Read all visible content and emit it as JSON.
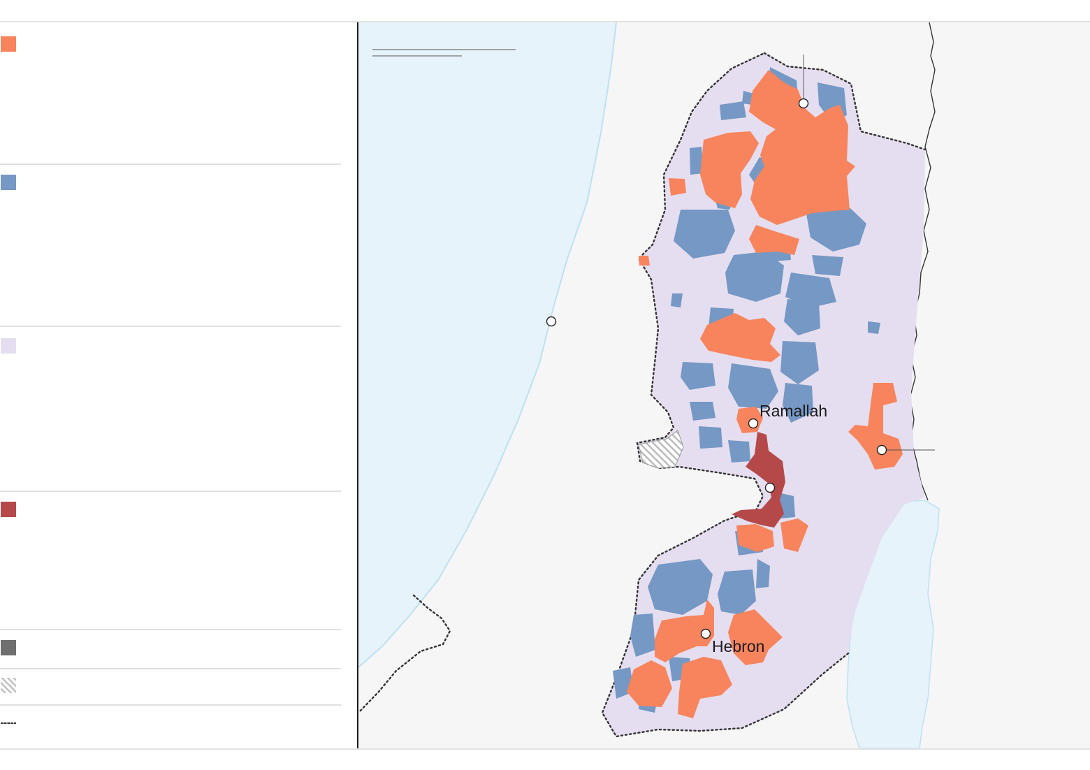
{
  "legend": {
    "items": [
      {
        "label": "",
        "color": "#f7845c",
        "kind": "solid"
      },
      {
        "label": "",
        "color": "#7598c4",
        "kind": "solid"
      },
      {
        "label": "",
        "color": "#e5def0",
        "kind": "solid"
      },
      {
        "label": "",
        "color": "#b5494a",
        "kind": "solid"
      },
      {
        "label": "",
        "color": "#6f6f6f",
        "kind": "solid"
      },
      {
        "label": "",
        "color": "#b9b9b9",
        "kind": "hatch"
      },
      {
        "label": "",
        "color": "#333333",
        "kind": "dotted-line"
      }
    ]
  },
  "map": {
    "colors": {
      "sea": "#e6f3fb",
      "land": "#f6f6f6",
      "territory": "#e5def0",
      "area_a": "#f7845c",
      "area_b": "#7598c4",
      "jerusalem": "#b5494a",
      "border": "#333333"
    },
    "cities": [
      {
        "name": "Ramallah"
      },
      {
        "name": "Hebron"
      }
    ]
  }
}
